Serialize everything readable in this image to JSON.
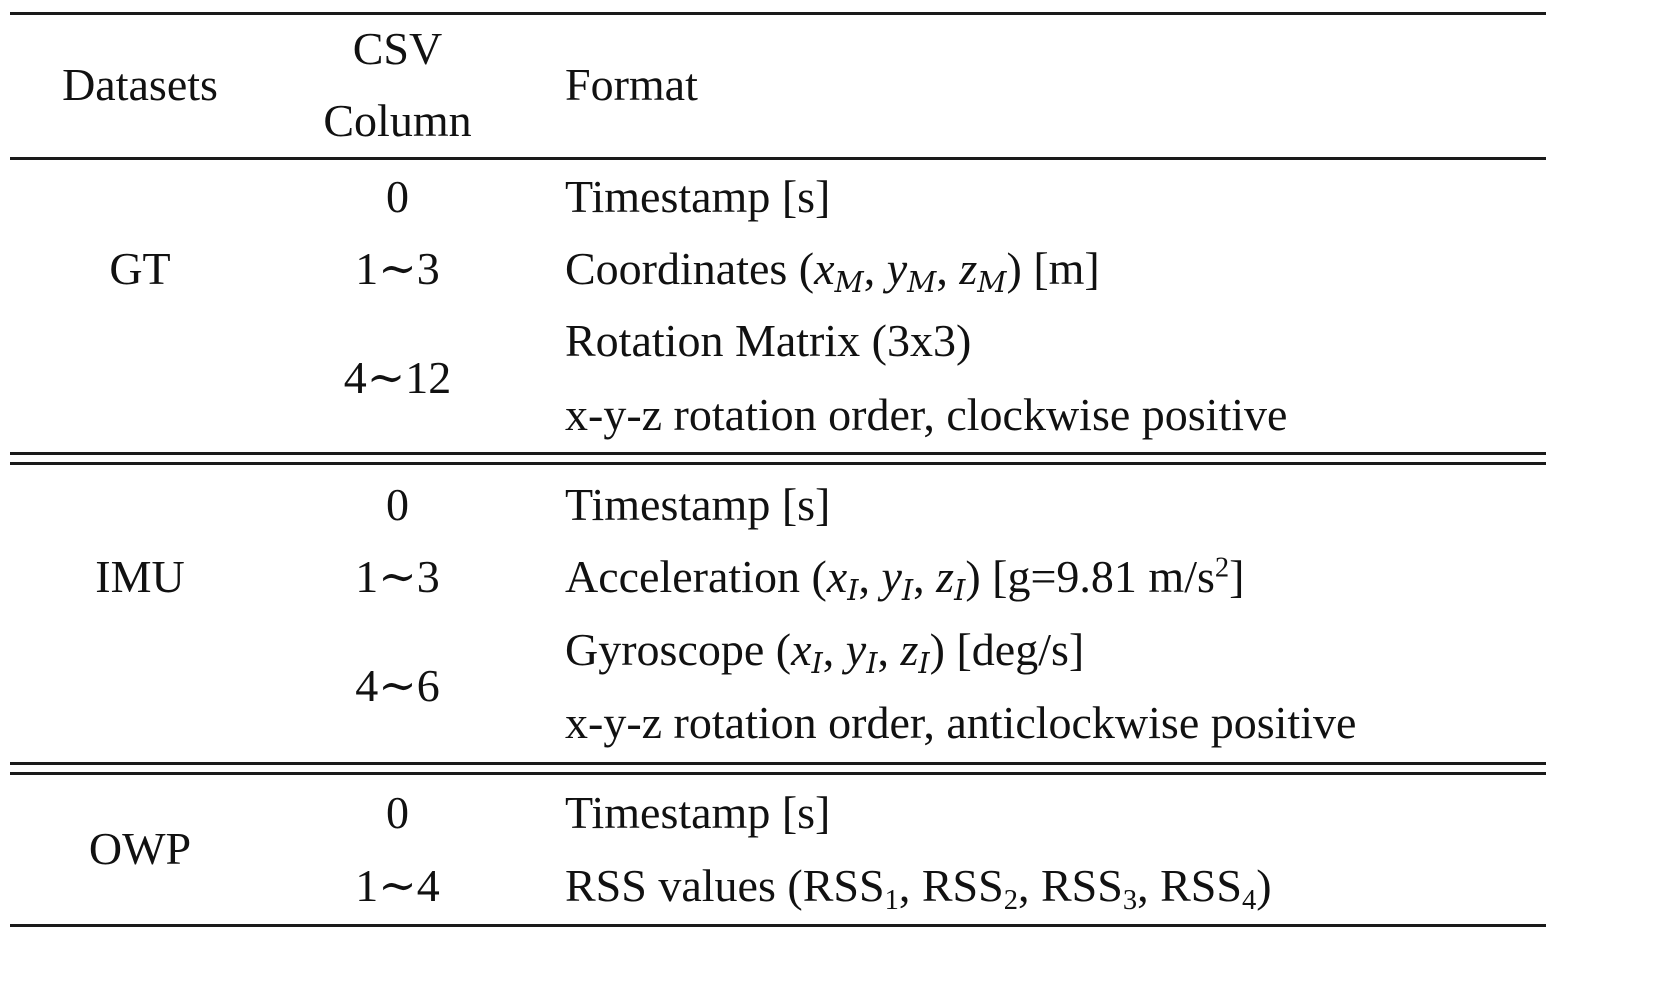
{
  "header": {
    "datasets": "Datasets",
    "csv_line1": "CSV",
    "csv_line2": "Column",
    "format": "Format"
  },
  "gt": {
    "name": "GT",
    "rows": [
      {
        "col": "0",
        "format": "Timestamp [s]"
      },
      {
        "col": "1∼3",
        "label": "Coordinates",
        "x": "x",
        "y": "y",
        "z": "z",
        "sub": "M",
        "unit": "[m]"
      },
      {
        "col": "4∼12",
        "line1": "Rotation Matrix (3x3)",
        "line2": "x-y-z rotation order, clockwise positive"
      }
    ]
  },
  "imu": {
    "name": "IMU",
    "rows": [
      {
        "col": "0",
        "format": "Timestamp [s]"
      },
      {
        "col": "1∼3",
        "label": "Acceleration",
        "x": "x",
        "y": "y",
        "z": "z",
        "sub": "I",
        "unit_pre": "[g=9.81 m/s",
        "unit_sup": "2",
        "unit_post": "]"
      },
      {
        "col": "4∼6",
        "label": "Gyroscope",
        "x": "x",
        "y": "y",
        "z": "z",
        "sub": "I",
        "unit": "[deg/s]",
        "line2": "x-y-z rotation order, anticlockwise positive"
      }
    ]
  },
  "owp": {
    "name": "OWP",
    "rows": [
      {
        "col": "0",
        "format": "Timestamp [s]"
      },
      {
        "col": "1∼4",
        "label": "RSS values",
        "rss": "RSS",
        "s1": "1",
        "s2": "2",
        "s3": "3",
        "s4": "4"
      }
    ]
  }
}
